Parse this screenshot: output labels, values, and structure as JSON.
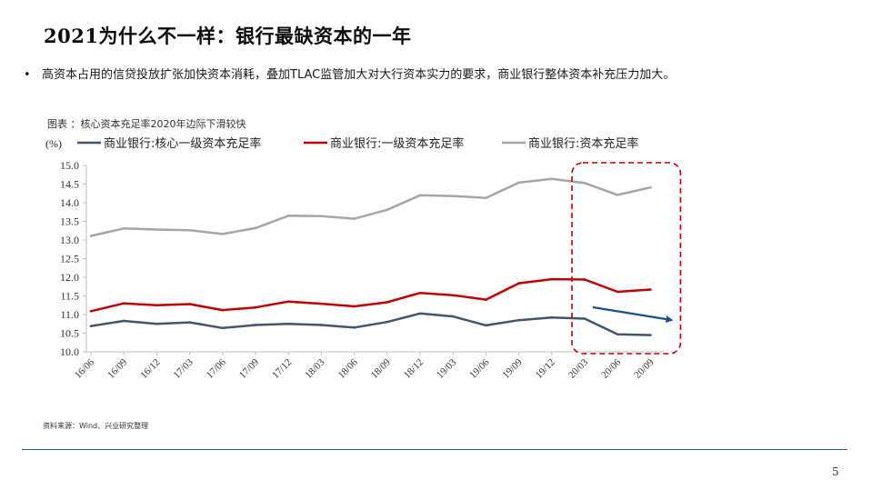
{
  "slide": {
    "title": "2021为什么不一样：银行最缺资本的一年",
    "bullet_symbol": "•",
    "bullet": "高资本占用的信贷投放扩张加快资本消耗，叠加TLAC监管加大对大行资本实力的要求，商业银行整体资本补充压力加大。",
    "source": "资料来源：Wind、兴业研究整理",
    "page_number": "5"
  },
  "colors": {
    "series_core": "#44546a",
    "series_tier1": "#c00000",
    "series_total": "#a6a6a6",
    "highlight_box": "#c00000",
    "arrow": "#1f4e8c",
    "footer_rule": "#2f5d8a"
  },
  "chart_data": {
    "type": "line",
    "title": "图表 ：核心资本充足率2020年边际下滑较快",
    "ylabel": "(%)",
    "xlabel": "",
    "ylim": [
      10.0,
      15.0
    ],
    "yticks": [
      "10.0",
      "10.5",
      "11.0",
      "11.5",
      "12.0",
      "12.5",
      "13.0",
      "13.5",
      "14.0",
      "14.5",
      "15.0"
    ],
    "categories": [
      "16/06",
      "16/09",
      "16/12",
      "17/03",
      "17/06",
      "17/09",
      "17/12",
      "18/03",
      "18/06",
      "18/09",
      "18/12",
      "19/03",
      "19/06",
      "19/09",
      "19/12",
      "20/03",
      "20/06",
      "20/09"
    ],
    "series": [
      {
        "name": "商业银行:核心一级资本充足率",
        "color_key": "series_core",
        "values": [
          10.69,
          10.83,
          10.75,
          10.79,
          10.64,
          10.72,
          10.75,
          10.72,
          10.65,
          10.8,
          11.03,
          10.95,
          10.71,
          10.85,
          10.92,
          10.89,
          10.47,
          10.45
        ]
      },
      {
        "name": "商业银行:一级资本充足率",
        "color_key": "series_tier1",
        "values": [
          11.09,
          11.3,
          11.25,
          11.28,
          11.12,
          11.19,
          11.35,
          11.29,
          11.22,
          11.33,
          11.58,
          11.52,
          11.4,
          11.84,
          11.95,
          11.94,
          11.61,
          11.67
        ]
      },
      {
        "name": "商业银行:资本充足率",
        "color_key": "series_total",
        "values": [
          13.11,
          13.31,
          13.28,
          13.26,
          13.16,
          13.32,
          13.65,
          13.64,
          13.57,
          13.81,
          14.2,
          14.18,
          14.13,
          14.54,
          14.64,
          14.53,
          14.21,
          14.41
        ]
      }
    ],
    "legend_position": "top",
    "grid": false,
    "annotations": [
      {
        "type": "dashed-rounded-box",
        "around": [
          "20/03",
          "20/09"
        ],
        "color_key": "highlight_box"
      },
      {
        "type": "downward-arrow",
        "from": "20/03",
        "to": "20/09",
        "color_key": "arrow"
      }
    ]
  }
}
